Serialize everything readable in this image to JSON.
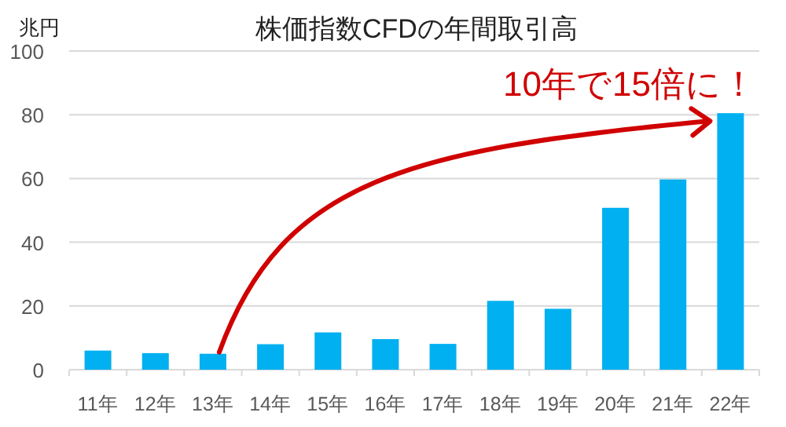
{
  "chart_data": {
    "type": "bar",
    "title": "株価指数CFDの年間取引高",
    "ylabel": "兆円",
    "categories": [
      "11年",
      "12年",
      "13年",
      "14年",
      "15年",
      "16年",
      "17年",
      "18年",
      "19年",
      "20年",
      "21年",
      "22年"
    ],
    "values": [
      6.0,
      5.2,
      5.0,
      8.0,
      11.7,
      9.6,
      8.1,
      21.6,
      19.1,
      50.8,
      59.7,
      80.5
    ],
    "color": "#00b0f0",
    "ylim": [
      0,
      100
    ],
    "yticks": [
      0,
      20,
      40,
      60,
      80,
      100
    ],
    "grid": "y",
    "annotations": [
      "10年で15倍に！"
    ]
  }
}
